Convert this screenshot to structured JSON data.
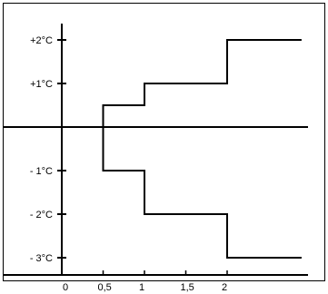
{
  "chart_data": {
    "type": "line",
    "title": "",
    "xlabel": "",
    "ylabel": "",
    "xlim": [
      0,
      2.9
    ],
    "ylim": [
      -3.4,
      2.4
    ],
    "x_ticks": [
      {
        "value": 0,
        "label": "0"
      },
      {
        "value": 0.5,
        "label": "0,5"
      },
      {
        "value": 1,
        "label": "1"
      },
      {
        "value": 1.5,
        "label": "1,5"
      },
      {
        "value": 2,
        "label": "2"
      }
    ],
    "y_ticks": [
      {
        "value": 2,
        "label": "+2°C"
      },
      {
        "value": 1,
        "label": "+1°C"
      },
      {
        "value": -1,
        "label": "- 1°C"
      },
      {
        "value": -2,
        "label": "- 2°C"
      },
      {
        "value": -3,
        "label": "- 3°C"
      }
    ],
    "grid": false,
    "legend": "none",
    "colors": {
      "line": "#000000",
      "frame": "#000000",
      "background": "#ffffff"
    },
    "baseline": {
      "y": 0
    },
    "series": [
      {
        "step": "post",
        "x": [
          0.5,
          1,
          2,
          2.9
        ],
        "y": [
          0.5,
          1,
          2,
          2
        ]
      },
      {
        "step": "post",
        "x": [
          0.5,
          1,
          2,
          2.9
        ],
        "y": [
          -1,
          -2,
          -3,
          -3
        ]
      }
    ]
  }
}
